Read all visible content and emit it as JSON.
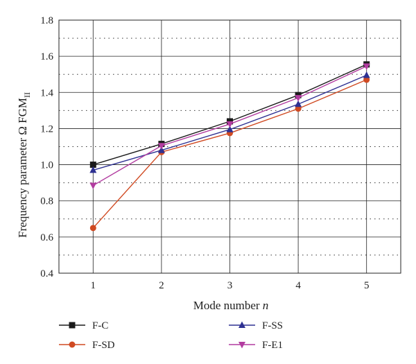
{
  "chart_data": {
    "type": "line",
    "x": [
      1,
      2,
      3,
      4,
      5
    ],
    "xticks": [
      "1",
      "2",
      "3",
      "4",
      "5"
    ],
    "xlim": [
      0.5,
      5.5
    ],
    "ylim": [
      0.4,
      1.8
    ],
    "yticks": [
      "0.4",
      "0.6",
      "0.8",
      "1.0",
      "1.2",
      "1.4",
      "1.6",
      "1.8"
    ],
    "xlabel_text": "Mode number ",
    "xlabel_var": "n",
    "ylabel_main": "Frequency parameter Ω FGM",
    "ylabel_sub": "II",
    "grid": "major solid, minor dotted",
    "legend_position": "bottom",
    "series": [
      {
        "name": "F-C",
        "color": "#1a1a1a",
        "marker": "square",
        "values": [
          1.0,
          1.115,
          1.24,
          1.385,
          1.555
        ]
      },
      {
        "name": "F-SD",
        "color": "#d04a22",
        "marker": "circle",
        "values": [
          0.65,
          1.07,
          1.175,
          1.31,
          1.47
        ]
      },
      {
        "name": "F-SS",
        "color": "#2e3192",
        "marker": "triangle-up",
        "values": [
          0.97,
          1.08,
          1.195,
          1.335,
          1.495
        ]
      },
      {
        "name": "F-E1",
        "color": "#b23ca0",
        "marker": "triangle-down",
        "values": [
          0.885,
          1.105,
          1.225,
          1.37,
          1.545
        ]
      }
    ]
  }
}
